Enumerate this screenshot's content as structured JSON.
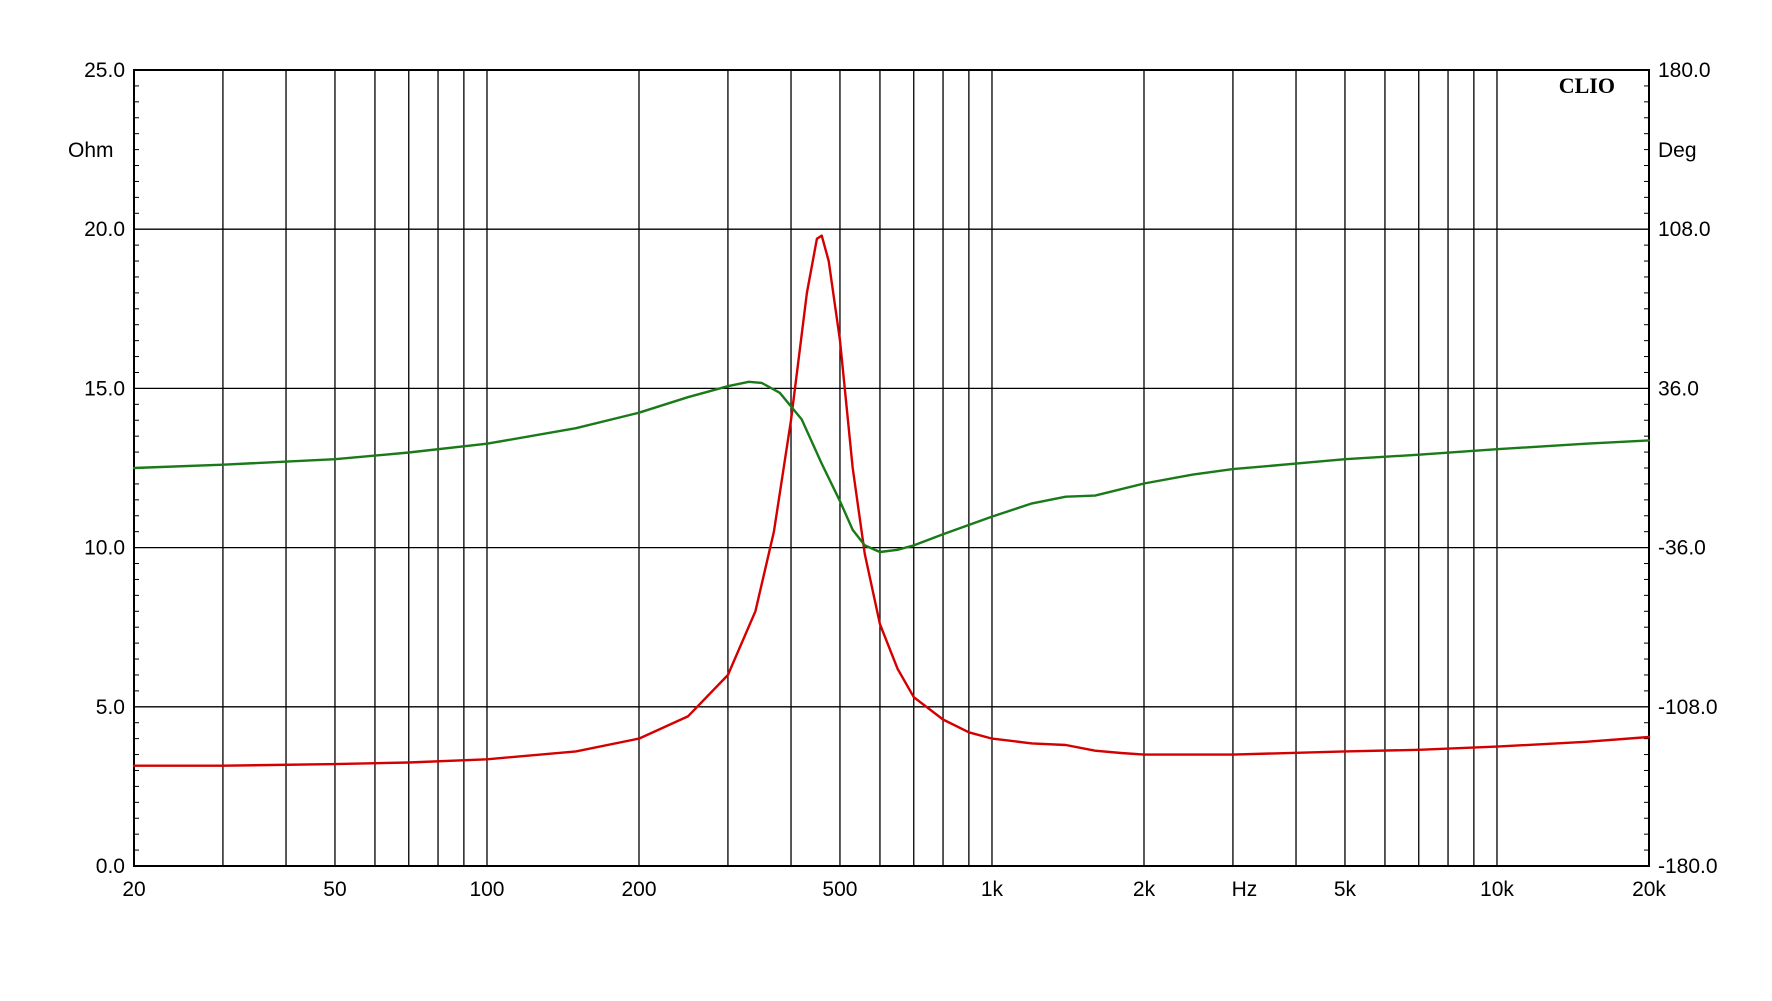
{
  "chart_data": {
    "type": "line",
    "brand": "CLIO",
    "x_scale": "log",
    "x_unit": "Hz",
    "xlim": [
      20,
      20000
    ],
    "x_ticks": [
      {
        "value": 20,
        "label": "20"
      },
      {
        "value": 50,
        "label": "50"
      },
      {
        "value": 100,
        "label": "100"
      },
      {
        "value": 200,
        "label": "200"
      },
      {
        "value": 500,
        "label": "500"
      },
      {
        "value": 1000,
        "label": "1k"
      },
      {
        "value": 2000,
        "label": "2k"
      },
      {
        "value": 5000,
        "label": "5k"
      },
      {
        "value": 10000,
        "label": "10k"
      },
      {
        "value": 20000,
        "label": "20k"
      }
    ],
    "y_left": {
      "unit": "Ohm",
      "range": [
        0,
        25
      ],
      "ticks": [
        "0.0",
        "5.0",
        "10.0",
        "15.0",
        "20.0",
        "25.0"
      ]
    },
    "y_right": {
      "unit": "Deg",
      "range": [
        -180,
        180
      ],
      "ticks": [
        "-180.0",
        "-108.0",
        "-36.0",
        "36.0",
        "108.0",
        "180.0"
      ]
    },
    "grid": true,
    "series": [
      {
        "axis": "left",
        "color": "#d40000",
        "points": [
          [
            20,
            3.15
          ],
          [
            30,
            3.15
          ],
          [
            50,
            3.2
          ],
          [
            70,
            3.25
          ],
          [
            100,
            3.35
          ],
          [
            150,
            3.6
          ],
          [
            200,
            4.0
          ],
          [
            250,
            4.7
          ],
          [
            300,
            6.0
          ],
          [
            340,
            8.0
          ],
          [
            370,
            10.5
          ],
          [
            400,
            14.0
          ],
          [
            430,
            18.0
          ],
          [
            450,
            19.7
          ],
          [
            460,
            19.8
          ],
          [
            475,
            19.0
          ],
          [
            500,
            16.5
          ],
          [
            530,
            12.5
          ],
          [
            560,
            9.8
          ],
          [
            600,
            7.6
          ],
          [
            650,
            6.2
          ],
          [
            700,
            5.3
          ],
          [
            800,
            4.6
          ],
          [
            900,
            4.2
          ],
          [
            1000,
            4.0
          ],
          [
            1200,
            3.85
          ],
          [
            1400,
            3.8
          ],
          [
            1600,
            3.62
          ],
          [
            1800,
            3.55
          ],
          [
            2000,
            3.5
          ],
          [
            3000,
            3.5
          ],
          [
            5000,
            3.6
          ],
          [
            7000,
            3.65
          ],
          [
            10000,
            3.75
          ],
          [
            15000,
            3.9
          ],
          [
            20000,
            4.05
          ]
        ]
      },
      {
        "axis": "right",
        "color": "#1a7a1a",
        "points": [
          [
            20,
            0
          ],
          [
            30,
            1.5
          ],
          [
            50,
            4
          ],
          [
            70,
            7
          ],
          [
            100,
            11
          ],
          [
            150,
            18
          ],
          [
            200,
            25
          ],
          [
            250,
            32
          ],
          [
            300,
            37
          ],
          [
            330,
            39
          ],
          [
            350,
            38.5
          ],
          [
            380,
            34
          ],
          [
            420,
            22
          ],
          [
            460,
            2
          ],
          [
            500,
            -15
          ],
          [
            530,
            -28
          ],
          [
            560,
            -35
          ],
          [
            600,
            -38
          ],
          [
            650,
            -37
          ],
          [
            700,
            -35
          ],
          [
            800,
            -30
          ],
          [
            1000,
            -22
          ],
          [
            1200,
            -16
          ],
          [
            1400,
            -13
          ],
          [
            1600,
            -12.5
          ],
          [
            2000,
            -7
          ],
          [
            2500,
            -3
          ],
          [
            3000,
            -0.5
          ],
          [
            4000,
            2
          ],
          [
            5000,
            4
          ],
          [
            7000,
            6
          ],
          [
            10000,
            8.5
          ],
          [
            15000,
            11
          ],
          [
            20000,
            12.5
          ]
        ]
      }
    ]
  }
}
